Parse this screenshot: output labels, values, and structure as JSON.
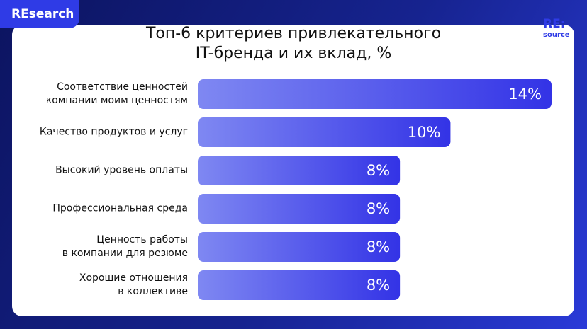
{
  "chart_data": {
    "type": "bar",
    "orientation": "horizontal",
    "brand": "REsearch",
    "logo": [
      "RE:",
      "source"
    ],
    "title": "Топ-6 критериев привлекательного\nIT-бренда и их вклад, %",
    "categories": [
      "Соответствие ценностей\nкомпании моим ценностям",
      "Качество продуктов и услуг",
      "Высокий уровень оплаты",
      "Профессиональная среда",
      "Ценность работы\nв компании для резюме",
      "Хорошие отношения\nв коллективе"
    ],
    "values": [
      14,
      10,
      8,
      8,
      8,
      8
    ],
    "value_labels": [
      "14%",
      "10%",
      "8%",
      "8%",
      "8%",
      "8%"
    ],
    "colors": [
      "#7f88f2",
      "#3333e6"
    ]
  }
}
